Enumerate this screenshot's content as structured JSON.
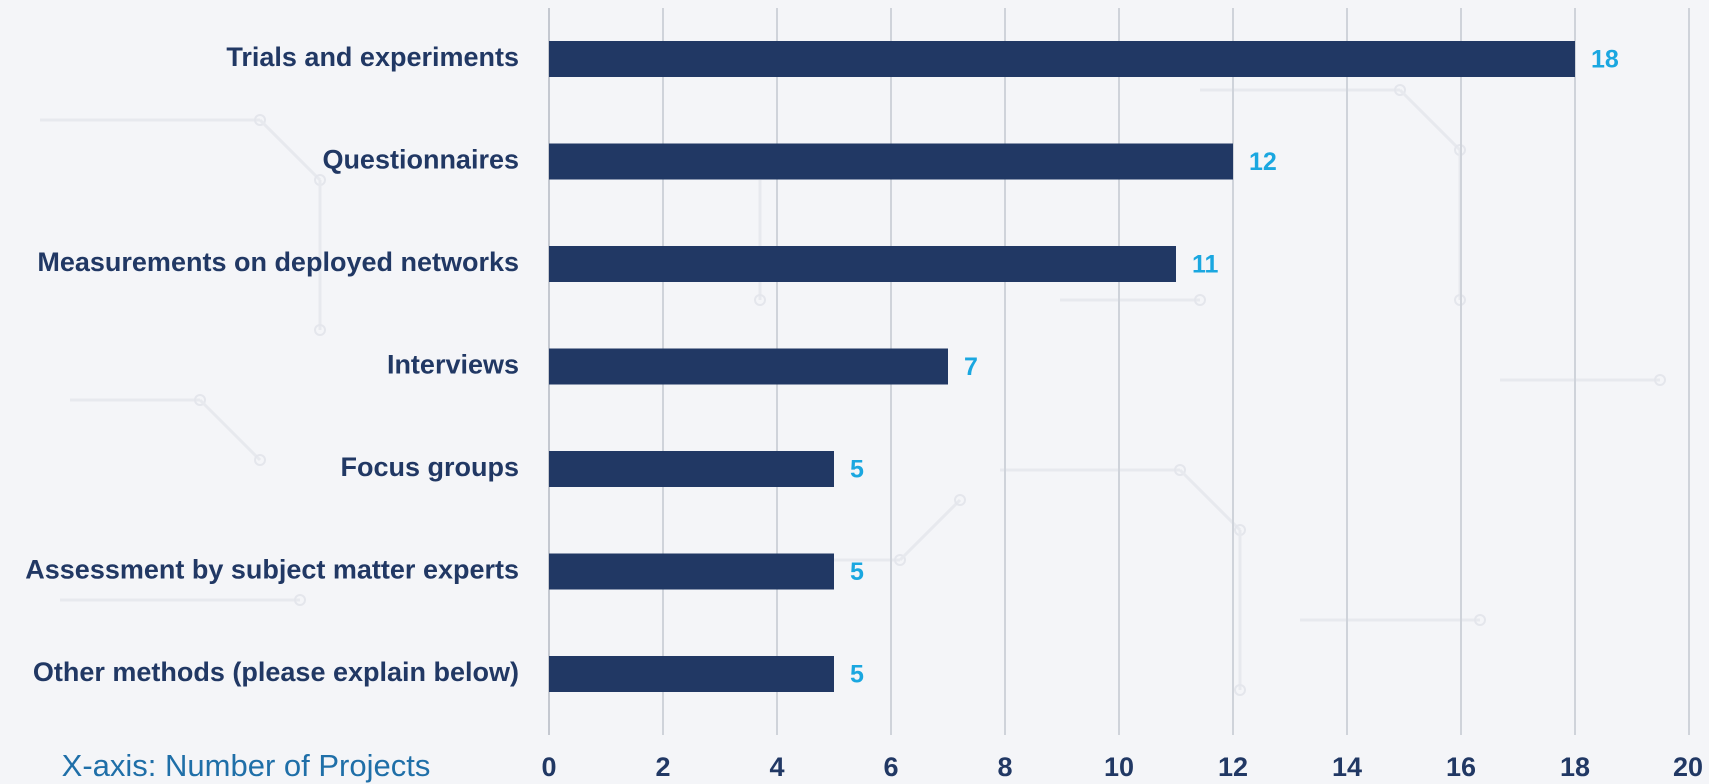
{
  "chart_data": {
    "type": "bar",
    "orientation": "horizontal",
    "categories": [
      "Trials and experiments",
      "Questionnaires",
      "Measurements on deployed networks",
      "Interviews",
      "Focus groups",
      "Assessment by subject matter experts",
      "Other methods (please explain below)"
    ],
    "values": [
      18,
      12,
      11,
      7,
      5,
      5,
      5
    ],
    "xlabel": "X-axis: Number of Projects",
    "xlim": [
      0,
      20
    ],
    "xticks": [
      0,
      2,
      4,
      6,
      8,
      10,
      12,
      14,
      16,
      18,
      20
    ],
    "grid": "vertical",
    "data_labels": true,
    "colors": {
      "bar": "#213864",
      "category_label": "#213864",
      "tick_label": "#213864",
      "data_label": "#1aa7e0",
      "axis_title": "#1f6fa8",
      "grid": "#cfd3da",
      "background": "#f4f5f8"
    }
  }
}
